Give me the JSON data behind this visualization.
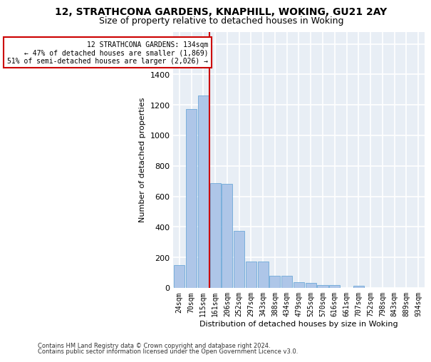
{
  "title": "12, STRATHCONA GARDENS, KNAPHILL, WOKING, GU21 2AY",
  "subtitle": "Size of property relative to detached houses in Woking",
  "xlabel": "Distribution of detached houses by size in Woking",
  "ylabel": "Number of detached properties",
  "categories": [
    "24sqm",
    "70sqm",
    "115sqm",
    "161sqm",
    "206sqm",
    "252sqm",
    "297sqm",
    "343sqm",
    "388sqm",
    "434sqm",
    "479sqm",
    "525sqm",
    "570sqm",
    "616sqm",
    "661sqm",
    "707sqm",
    "752sqm",
    "798sqm",
    "843sqm",
    "889sqm",
    "934sqm"
  ],
  "values": [
    150,
    1175,
    1260,
    685,
    680,
    375,
    170,
    170,
    80,
    80,
    35,
    30,
    20,
    20,
    0,
    15,
    0,
    0,
    0,
    0,
    0
  ],
  "bar_color": "#aec6e8",
  "bar_edge_color": "#5a9fd4",
  "background_color": "#e8eef5",
  "grid_color": "#ffffff",
  "annotation_box_text1": "12 STRATHCONA GARDENS: 134sqm",
  "annotation_box_text2": "← 47% of detached houses are smaller (1,869)",
  "annotation_box_text3": "51% of semi-detached houses are larger (2,026) →",
  "annotation_line_color": "#cc0000",
  "annotation_box_edge_color": "#cc0000",
  "ylim": [
    0,
    1680
  ],
  "yticks": [
    0,
    200,
    400,
    600,
    800,
    1000,
    1200,
    1400,
    1600
  ],
  "footer1": "Contains HM Land Registry data © Crown copyright and database right 2024.",
  "footer2": "Contains public sector information licensed under the Open Government Licence v3.0.",
  "title_fontsize": 10,
  "subtitle_fontsize": 9,
  "xlabel_fontsize": 8,
  "ylabel_fontsize": 8
}
